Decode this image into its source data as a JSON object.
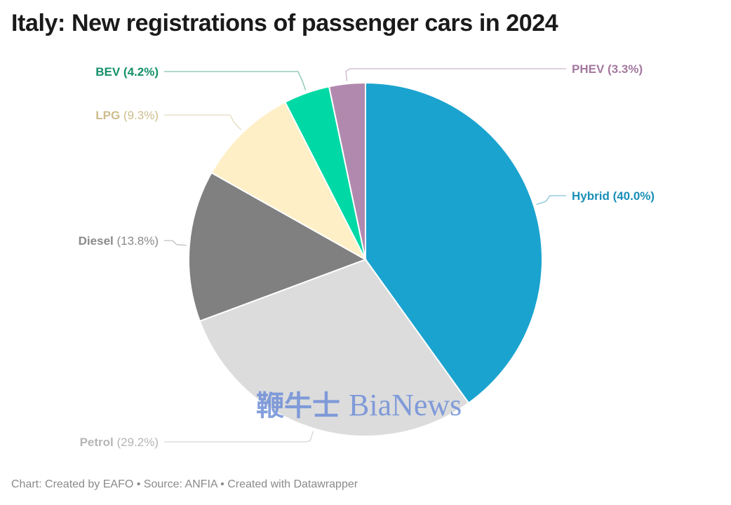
{
  "title": "Italy: New registrations of passenger cars in 2024",
  "footer": "Chart: Created by EAFO • Source: ANFIA • Created with Datawrapper",
  "watermark": {
    "text_cjk": "鞭牛士",
    "text_latin": "BiaNews",
    "color": "#6f8fd8"
  },
  "chart_data": {
    "type": "pie",
    "title": "Italy: New registrations of passenger cars in 2024",
    "unit": "%",
    "slices": [
      {
        "label": "Hybrid",
        "value": 40.0,
        "display": "(40.0%)",
        "color": "#1ba3cf",
        "label_color": "#1a8fb8",
        "bold_value": true
      },
      {
        "label": "Petrol",
        "value": 29.2,
        "display": "(29.2%)",
        "color": "#dcdcdc",
        "label_color": "#b5b5b5",
        "bold_value": false
      },
      {
        "label": "Diesel",
        "value": 13.8,
        "display": "(13.8%)",
        "color": "#808080",
        "label_color": "#8a8a8a",
        "bold_value": false
      },
      {
        "label": "LPG",
        "value": 9.3,
        "display": "(9.3%)",
        "color": "#feefc6",
        "label_color": "#cdbc8c",
        "bold_value": false
      },
      {
        "label": "BEV",
        "value": 4.2,
        "display": "(4.2%)",
        "color": "#00d9a5",
        "label_color": "#15906a",
        "bold_value": true
      },
      {
        "label": "PHEV",
        "value": 3.3,
        "display": "(3.3%)",
        "color": "#b189ae",
        "label_color": "#a4789f",
        "bold_value": true
      }
    ]
  }
}
